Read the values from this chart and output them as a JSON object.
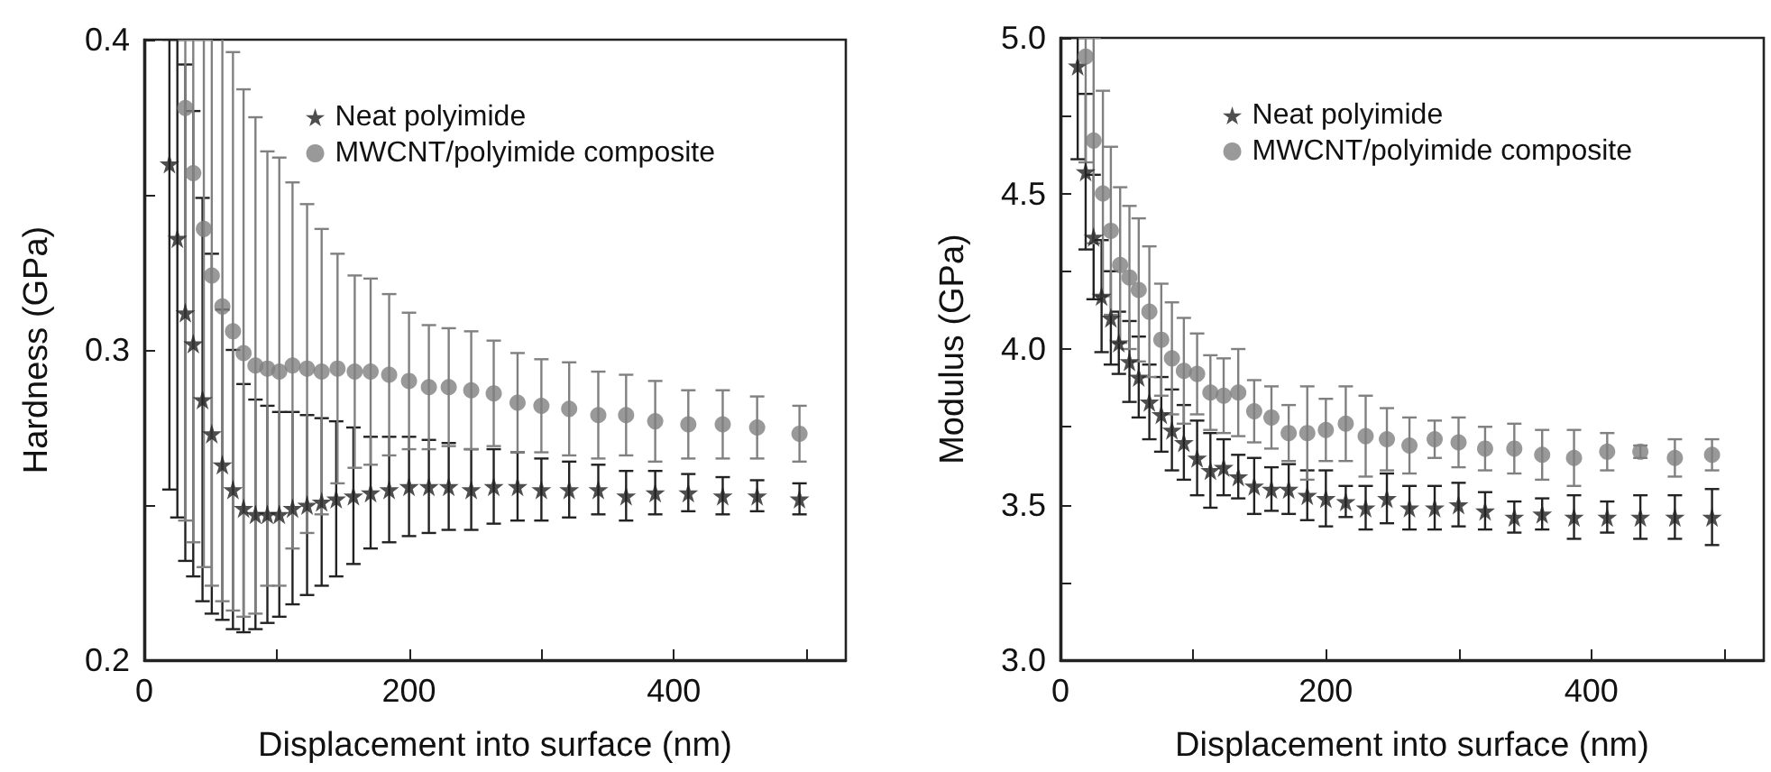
{
  "chart_data": [
    {
      "type": "scatter",
      "xlabel": "Displacement into surface (nm)",
      "ylabel": "Hardness (GPa)",
      "xlim": [
        0,
        530
      ],
      "xticks": [
        0,
        {
          "value": 100,
          "label": null
        },
        200,
        {
          "value": 300,
          "label": null
        },
        400,
        {
          "value": 500,
          "label": null
        }
      ],
      "ylim": [
        0.2,
        0.4
      ],
      "yticks": [
        0.2,
        {
          "value": 0.25,
          "label": null
        },
        0.3,
        {
          "value": 0.35,
          "label": null
        },
        0.4
      ],
      "grid": false,
      "legend": "top",
      "series": [
        {
          "name": "Neat polyimide",
          "color": "#222222",
          "marker": "star",
          "x": [
            19,
            25,
            31,
            37,
            44,
            51,
            59,
            67,
            75,
            84,
            93,
            102,
            112,
            123,
            134,
            145,
            158,
            171,
            185,
            200,
            215,
            230,
            247,
            264,
            282,
            300,
            321,
            343,
            364,
            386,
            411,
            437,
            463,
            495
          ],
          "values": [
            0.36,
            0.336,
            0.312,
            0.302,
            0.284,
            0.273,
            0.263,
            0.255,
            0.249,
            0.247,
            0.247,
            0.247,
            0.249,
            0.25,
            0.251,
            0.252,
            0.253,
            0.254,
            0.255,
            0.256,
            0.256,
            0.256,
            0.255,
            0.256,
            0.256,
            0.255,
            0.255,
            0.255,
            0.253,
            0.254,
            0.254,
            0.253,
            0.253,
            0.252
          ],
          "errors": [
            [
              0.255,
              0.4
            ],
            [
              0.246,
              0.4
            ],
            0.08,
            0.075,
            0.065,
            0.058,
            0.05,
            0.045,
            0.04,
            0.037,
            0.035,
            0.033,
            0.031,
            0.029,
            0.027,
            0.025,
            0.022,
            0.018,
            0.017,
            0.016,
            0.015,
            0.014,
            0.013,
            0.012,
            0.011,
            0.01,
            0.009,
            0.008,
            0.008,
            0.007,
            0.006,
            0.006,
            0.005,
            0.005
          ]
        },
        {
          "name": "MWCNT/polyimide composite",
          "color": "#808080",
          "marker": "circle",
          "x": [
            31,
            37,
            45,
            51,
            59,
            67,
            75,
            84,
            93,
            102,
            112,
            123,
            134,
            146,
            159,
            171,
            185,
            200,
            215,
            230,
            247,
            264,
            282,
            300,
            321,
            343,
            364,
            386,
            411,
            437,
            463,
            495
          ],
          "values": [
            0.378,
            0.357,
            0.339,
            0.324,
            0.314,
            0.306,
            0.299,
            0.295,
            0.294,
            0.293,
            0.295,
            0.294,
            0.293,
            0.294,
            0.293,
            0.293,
            0.292,
            0.29,
            0.288,
            0.288,
            0.287,
            0.286,
            0.283,
            0.282,
            0.281,
            0.279,
            0.279,
            0.277,
            0.276,
            0.276,
            0.275,
            0.273
          ],
          "errors": [
            [
              0.245,
              0.4
            ],
            [
              0.238,
              0.4
            ],
            [
              0.23,
              0.4
            ],
            0.1,
            0.095,
            0.09,
            0.085,
            0.08,
            0.07,
            0.069,
            0.059,
            0.053,
            0.046,
            0.037,
            0.031,
            0.03,
            0.026,
            0.022,
            0.02,
            0.019,
            0.019,
            0.017,
            0.016,
            0.015,
            0.015,
            0.014,
            0.013,
            0.013,
            0.011,
            0.011,
            0.01,
            0.009
          ]
        }
      ]
    },
    {
      "type": "scatter",
      "xlabel": "Displacement into surface (nm)",
      "ylabel": "Modulus (GPa)",
      "xlim": [
        0,
        530
      ],
      "xticks": [
        0,
        {
          "value": 100,
          "label": null
        },
        200,
        {
          "value": 300,
          "label": null
        },
        400,
        {
          "value": 500,
          "label": null
        }
      ],
      "ylim": [
        3,
        5
      ],
      "yticks": [
        {
          "value": 3,
          "label": "3.0"
        },
        {
          "value": 3.25,
          "label": null
        },
        3.5,
        {
          "value": 3.75,
          "label": null
        },
        {
          "value": 4,
          "label": "4.0"
        },
        {
          "value": 4.25,
          "label": null
        },
        4.5,
        {
          "value": 4.75,
          "label": null
        },
        {
          "value": 5,
          "label": "5.0"
        }
      ],
      "grid": false,
      "legend": "top",
      "series": [
        {
          "name": "Neat polyimide",
          "color": "#222222",
          "marker": "star",
          "x": [
            13,
            19,
            25,
            31,
            38,
            44,
            52,
            59,
            67,
            76,
            84,
            93,
            103,
            113,
            123,
            134,
            146,
            159,
            172,
            186,
            200,
            215,
            230,
            246,
            263,
            282,
            300,
            320,
            342,
            363,
            387,
            412,
            437,
            463,
            491
          ],
          "values": [
            4.91,
            4.57,
            4.36,
            4.17,
            4.1,
            4.02,
            3.96,
            3.91,
            3.83,
            3.79,
            3.74,
            3.7,
            3.65,
            3.61,
            3.62,
            3.59,
            3.56,
            3.55,
            3.55,
            3.53,
            3.52,
            3.51,
            3.49,
            3.52,
            3.49,
            3.49,
            3.5,
            3.48,
            3.46,
            3.47,
            3.46,
            3.46,
            3.46,
            3.46,
            3.46
          ],
          "errors": [
            [
              4.61,
              5.0
            ],
            0.25,
            0.2,
            0.18,
            0.15,
            0.1,
            0.13,
            0.13,
            0.12,
            0.12,
            0.13,
            0.12,
            0.12,
            0.12,
            0.09,
            0.07,
            0.09,
            0.07,
            0.08,
            0.08,
            0.09,
            0.05,
            0.07,
            0.08,
            0.07,
            0.07,
            0.07,
            0.06,
            0.05,
            0.05,
            0.07,
            0.05,
            0.07,
            0.07,
            0.09
          ]
        },
        {
          "name": "MWCNT/polyimide composite",
          "color": "#808080",
          "marker": "circle",
          "x": [
            19,
            25,
            32,
            38,
            45,
            52,
            59,
            67,
            76,
            84,
            93,
            103,
            113,
            123,
            134,
            146,
            159,
            172,
            186,
            200,
            215,
            230,
            246,
            263,
            282,
            300,
            320,
            342,
            363,
            387,
            412,
            437,
            463,
            491
          ],
          "values": [
            4.94,
            4.67,
            4.5,
            4.38,
            4.27,
            4.23,
            4.19,
            4.12,
            4.03,
            3.97,
            3.93,
            3.92,
            3.86,
            3.85,
            3.86,
            3.8,
            3.78,
            3.73,
            3.73,
            3.74,
            3.76,
            3.72,
            3.71,
            3.69,
            3.71,
            3.7,
            3.68,
            3.68,
            3.66,
            3.65,
            3.67,
            3.67,
            3.65,
            3.66
          ],
          "errors": [
            [
              4.6,
              5.0
            ],
            0.33,
            0.33,
            0.27,
            0.25,
            0.23,
            0.23,
            0.21,
            0.18,
            0.18,
            0.17,
            0.13,
            0.12,
            0.12,
            0.14,
            0.1,
            0.1,
            0.09,
            0.15,
            0.1,
            0.12,
            0.13,
            0.1,
            0.09,
            0.06,
            0.08,
            0.07,
            0.08,
            0.08,
            0.09,
            0.06,
            0.02,
            0.06,
            0.05
          ]
        }
      ]
    }
  ]
}
